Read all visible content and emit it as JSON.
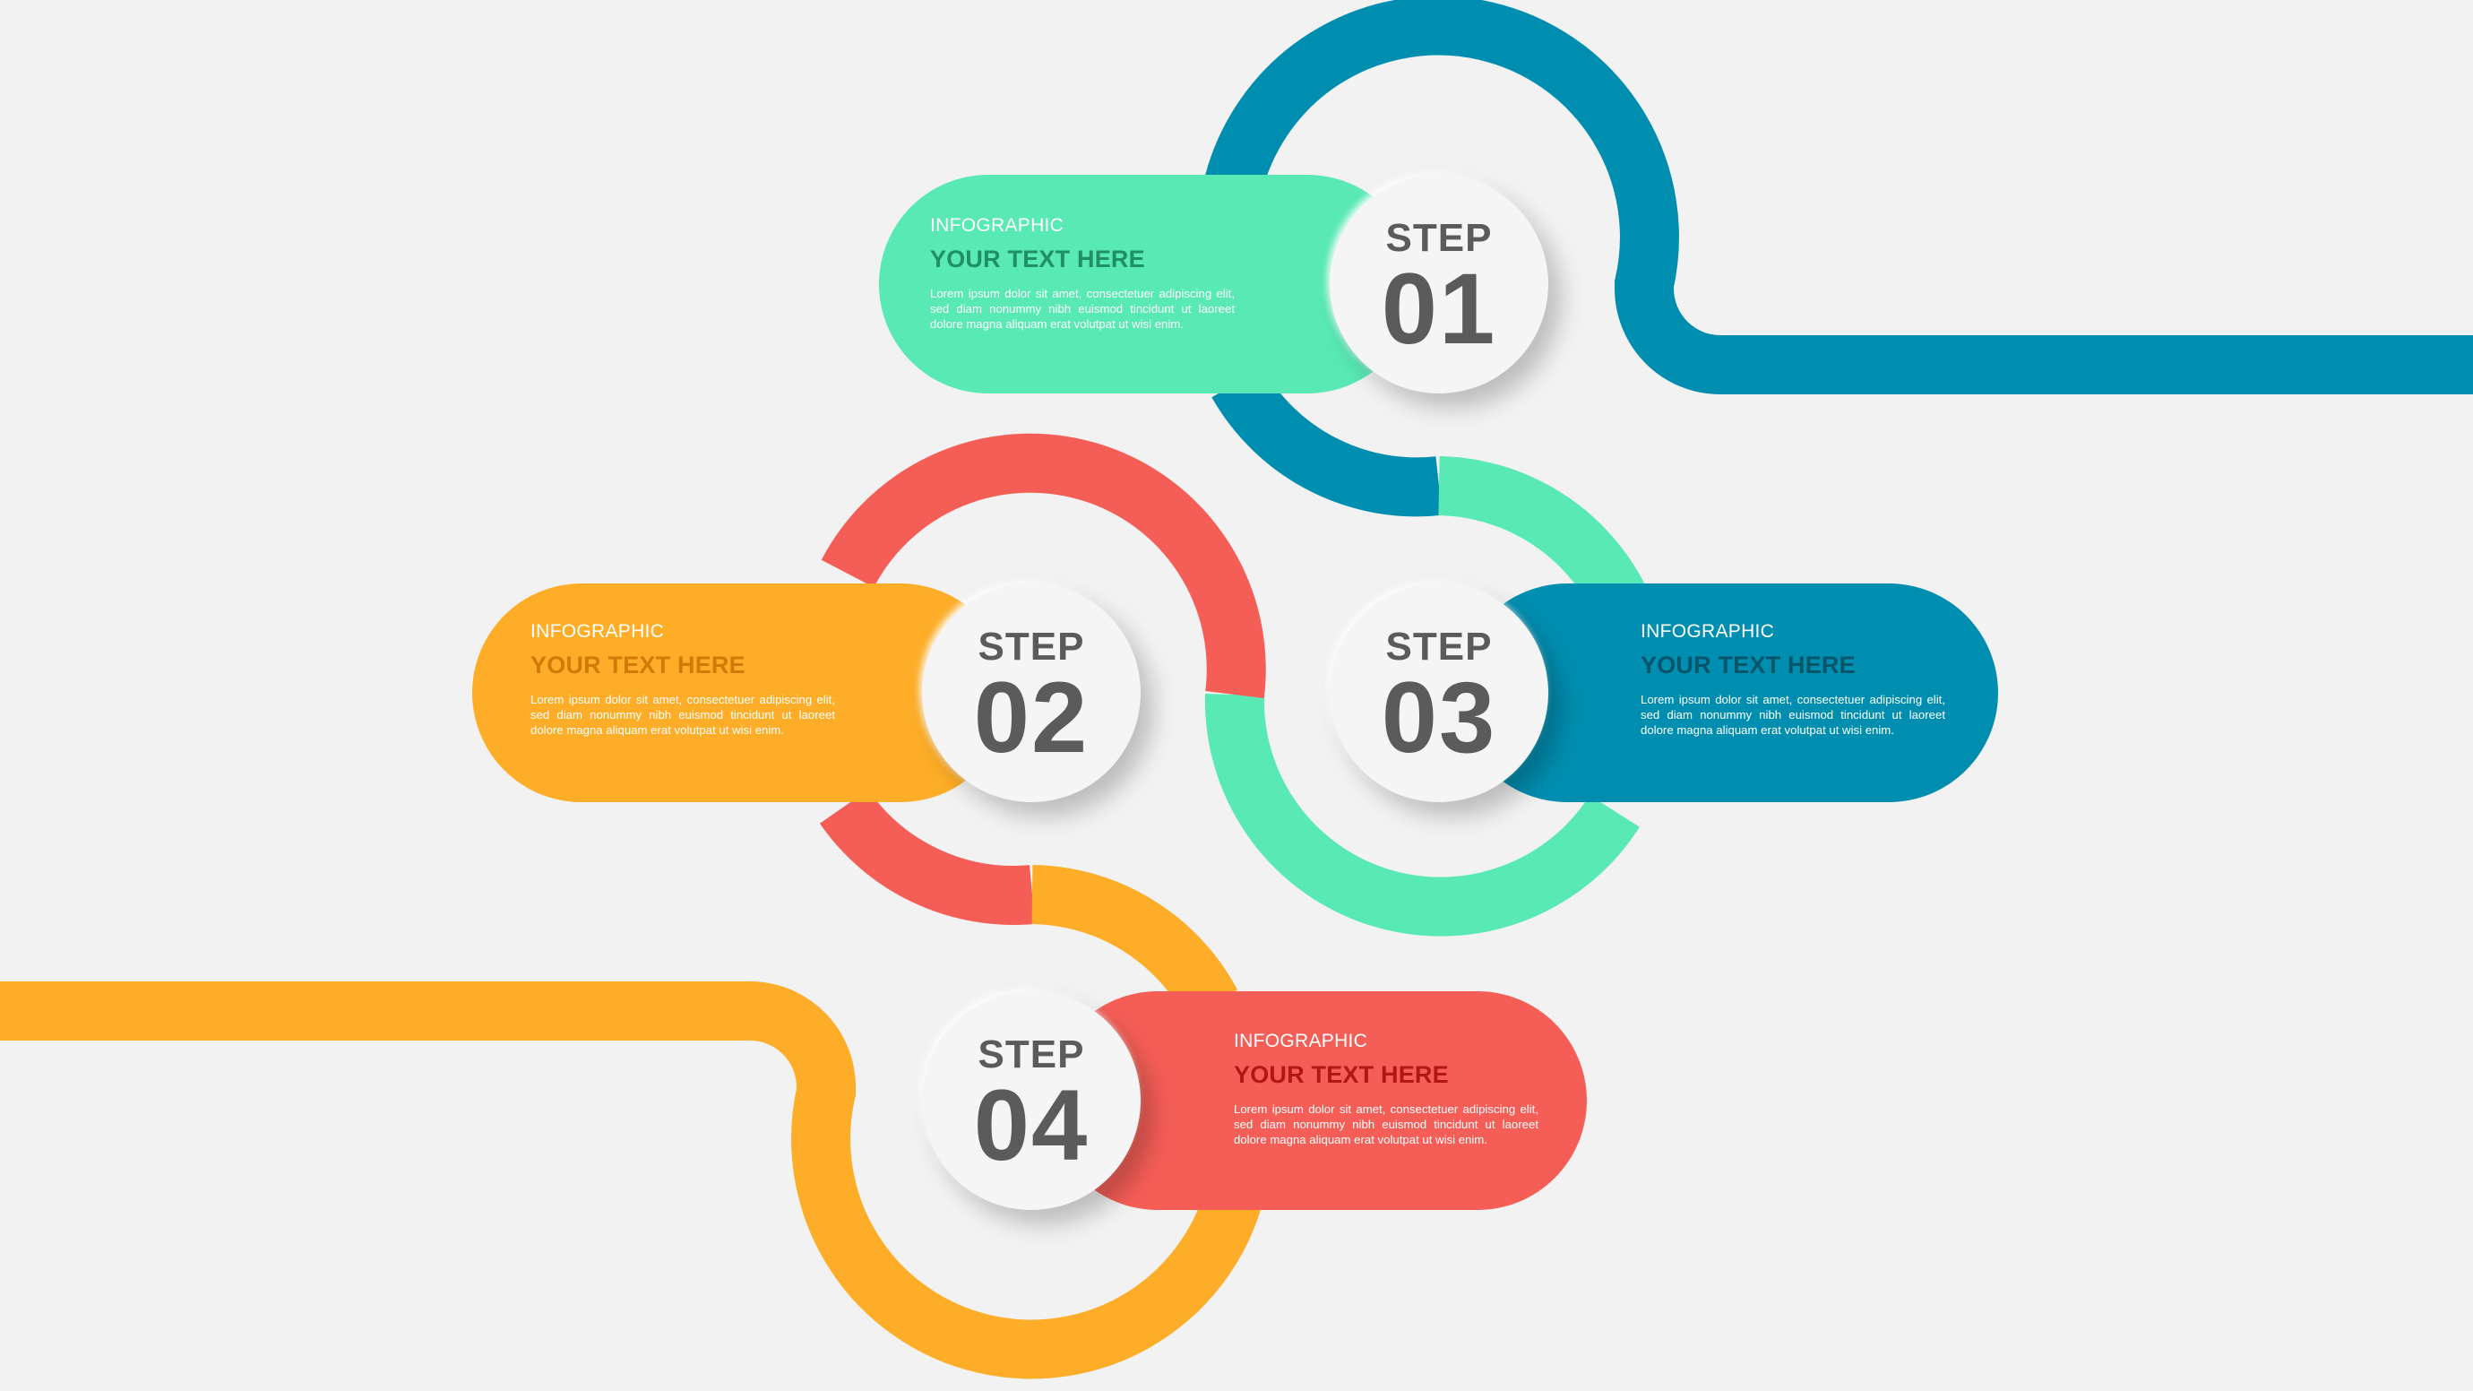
{
  "colors": {
    "background": "#f2f2f2",
    "blue": "#008eb0",
    "mint": "#58e9b4",
    "coral": "#f55e57",
    "orange": "#fdad27",
    "circle_text": "#5b5b5b"
  },
  "steps": [
    {
      "step_label": "STEP",
      "number": "01",
      "kicker": "INFOGRAPHIC",
      "heading": "YOUR TEXT HERE",
      "body": "Lorem ipsum dolor sit amet, consectetuer adipiscing elit, sed diam nonummy nibh euismod tincidunt ut laoreet dolore magna aliquam erat volutpat ut wisi enim.",
      "color": "mint"
    },
    {
      "step_label": "STEP",
      "number": "02",
      "kicker": "INFOGRAPHIC",
      "heading": "YOUR TEXT HERE",
      "body": "Lorem ipsum dolor sit amet, consectetuer adipiscing elit, sed diam nonummy nibh euismod tincidunt ut laoreet dolore magna aliquam erat volutpat ut wisi enim.",
      "color": "orange"
    },
    {
      "step_label": "STEP",
      "number": "03",
      "kicker": "INFOGRAPHIC",
      "heading": "YOUR TEXT HERE",
      "body": "Lorem ipsum dolor sit amet, consectetuer adipiscing elit, sed diam nonummy nibh euismod tincidunt ut laoreet dolore magna aliquam erat volutpat ut wisi enim.",
      "color": "blue"
    },
    {
      "step_label": "STEP",
      "number": "04",
      "kicker": "INFOGRAPHIC",
      "heading": "YOUR TEXT HERE",
      "body": "Lorem ipsum dolor sit amet, consectetuer adipiscing elit, sed diam nonummy nibh euismod tincidunt ut laoreet dolore magna aliquam erat volutpat ut wisi enim.",
      "color": "coral"
    }
  ]
}
